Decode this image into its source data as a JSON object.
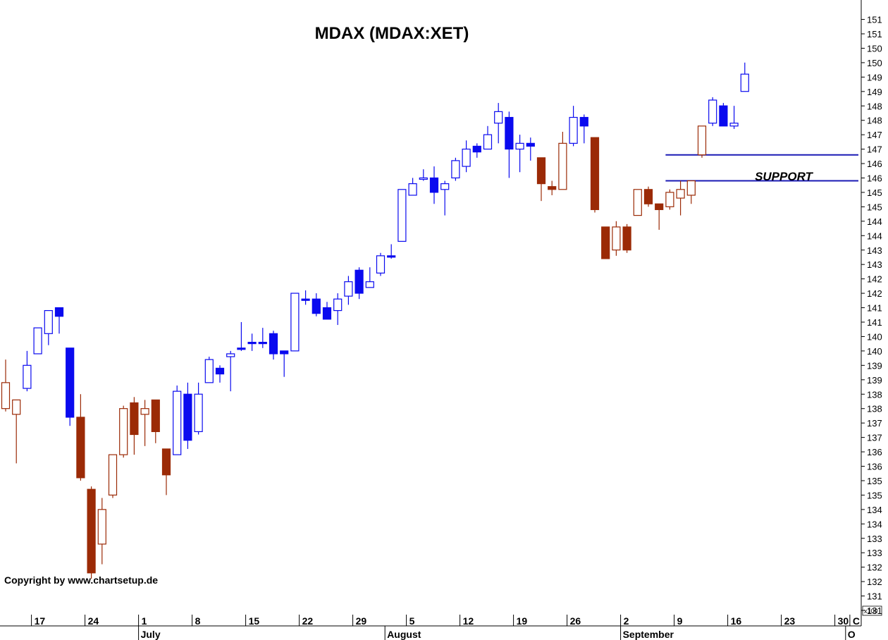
{
  "title": "MDAX  (MDAX:XET)",
  "copyright": "Copyright by www.chartsetup.de",
  "multiplier_label": "x100",
  "colors": {
    "blue": "#0a0aef",
    "brown": "#9b2a06",
    "axis": "#000000",
    "support": "#1a1ab5"
  },
  "chart_data": {
    "type": "candlestick",
    "title": "MDAX  (MDAX:XET)",
    "ylim": [
      13100,
      15200
    ],
    "y_tick_labels": [
      "131",
      "131",
      "132",
      "132",
      "133",
      "133",
      "134",
      "134",
      "135",
      "135",
      "136",
      "136",
      "137",
      "137",
      "138",
      "138",
      "139",
      "139",
      "140",
      "140",
      "141",
      "141",
      "142",
      "142",
      "143",
      "143",
      "144",
      "144",
      "145",
      "145",
      "146",
      "146",
      "147",
      "147",
      "148",
      "148",
      "149",
      "149",
      "150",
      "150",
      "151",
      "151"
    ],
    "y_multiplier": "x100",
    "x_tick_labels": [
      {
        "label": "17",
        "index": 3
      },
      {
        "label": "24",
        "index": 8
      },
      {
        "label": "1",
        "index": 13
      },
      {
        "label": "8",
        "index": 18
      },
      {
        "label": "15",
        "index": 23
      },
      {
        "label": "22",
        "index": 28
      },
      {
        "label": "29",
        "index": 33
      },
      {
        "label": "5",
        "index": 38
      },
      {
        "label": "12",
        "index": 43
      },
      {
        "label": "19",
        "index": 48
      },
      {
        "label": "26",
        "index": 53
      },
      {
        "label": "2",
        "index": 58
      },
      {
        "label": "9",
        "index": 63
      },
      {
        "label": "16",
        "index": 68
      },
      {
        "label": "23",
        "index": 73
      },
      {
        "label": "30",
        "index": 78
      },
      {
        "label": "C",
        "index": 79.4
      }
    ],
    "month_labels": [
      {
        "label": "July",
        "index": 13
      },
      {
        "label": "August",
        "index": 36
      },
      {
        "label": "September",
        "index": 58
      },
      {
        "label": "O",
        "index": 79
      }
    ],
    "support_levels": [
      {
        "value": 14680,
        "from_index": 62,
        "to_index": 79
      },
      {
        "value": 14590,
        "from_index": 62,
        "to_index": 79
      }
    ],
    "annotations": [
      {
        "text": "SUPPORT",
        "index": 71.5,
        "value": 14490
      }
    ],
    "candles": [
      {
        "o": 13800,
        "h": 13970,
        "l": 13790,
        "c": 13890,
        "color": "brown"
      },
      {
        "o": 13780,
        "h": 13820,
        "l": 13610,
        "c": 13830,
        "color": "brown"
      },
      {
        "o": 13870,
        "h": 14000,
        "l": 13860,
        "c": 13950,
        "color": "blue"
      },
      {
        "o": 13990,
        "h": 14080,
        "l": 13990,
        "c": 14080,
        "color": "blue"
      },
      {
        "o": 14060,
        "h": 14140,
        "l": 14020,
        "c": 14140,
        "color": "blue"
      },
      {
        "o": 14120,
        "h": 14150,
        "l": 14060,
        "c": 14150,
        "color": "blue",
        "filled": true
      },
      {
        "o": 14010,
        "h": 14010,
        "l": 13740,
        "c": 13770,
        "color": "blue",
        "filled": true
      },
      {
        "o": 13770,
        "h": 13850,
        "l": 13550,
        "c": 13560,
        "color": "brown",
        "filled": true
      },
      {
        "o": 13520,
        "h": 13530,
        "l": 13210,
        "c": 13230,
        "color": "brown",
        "filled": true
      },
      {
        "o": 13330,
        "h": 13490,
        "l": 13260,
        "c": 13450,
        "color": "brown"
      },
      {
        "o": 13500,
        "h": 13640,
        "l": 13490,
        "c": 13640,
        "color": "brown"
      },
      {
        "o": 13640,
        "h": 13810,
        "l": 13630,
        "c": 13800,
        "color": "brown"
      },
      {
        "o": 13820,
        "h": 13840,
        "l": 13640,
        "c": 13710,
        "color": "brown",
        "filled": true
      },
      {
        "o": 13780,
        "h": 13830,
        "l": 13670,
        "c": 13800,
        "color": "brown"
      },
      {
        "o": 13830,
        "h": 13830,
        "l": 13680,
        "c": 13720,
        "color": "brown",
        "filled": true
      },
      {
        "o": 13660,
        "h": 13660,
        "l": 13500,
        "c": 13570,
        "color": "brown",
        "filled": true
      },
      {
        "o": 13640,
        "h": 13880,
        "l": 13640,
        "c": 13860,
        "color": "blue"
      },
      {
        "o": 13850,
        "h": 13890,
        "l": 13660,
        "c": 13690,
        "color": "blue",
        "filled": true
      },
      {
        "o": 13720,
        "h": 13890,
        "l": 13710,
        "c": 13850,
        "color": "blue"
      },
      {
        "o": 13890,
        "h": 13980,
        "l": 13890,
        "c": 13970,
        "color": "blue"
      },
      {
        "o": 13940,
        "h": 13950,
        "l": 13890,
        "c": 13920,
        "color": "blue",
        "filled": true
      },
      {
        "o": 13980,
        "h": 14000,
        "l": 13860,
        "c": 13990,
        "color": "blue"
      },
      {
        "o": 14010,
        "h": 14100,
        "l": 14000,
        "c": 14010,
        "color": "blue",
        "filled": true
      },
      {
        "o": 14030,
        "h": 14060,
        "l": 14000,
        "c": 14030,
        "color": "blue",
        "filled": true
      },
      {
        "o": 14030,
        "h": 14080,
        "l": 14010,
        "c": 14030,
        "color": "blue",
        "filled": true
      },
      {
        "o": 14060,
        "h": 14070,
        "l": 13970,
        "c": 13990,
        "color": "blue",
        "filled": true
      },
      {
        "o": 14000,
        "h": 14000,
        "l": 13910,
        "c": 13990,
        "color": "blue",
        "filled": true
      },
      {
        "o": 14000,
        "h": 14200,
        "l": 14000,
        "c": 14200,
        "color": "blue"
      },
      {
        "o": 14180,
        "h": 14210,
        "l": 14160,
        "c": 14180,
        "color": "blue",
        "filled": true
      },
      {
        "o": 14180,
        "h": 14200,
        "l": 14120,
        "c": 14130,
        "color": "blue",
        "filled": true
      },
      {
        "o": 14150,
        "h": 14170,
        "l": 14110,
        "c": 14110,
        "color": "blue",
        "filled": true
      },
      {
        "o": 14140,
        "h": 14200,
        "l": 14090,
        "c": 14180,
        "color": "blue"
      },
      {
        "o": 14190,
        "h": 14260,
        "l": 14160,
        "c": 14240,
        "color": "blue"
      },
      {
        "o": 14200,
        "h": 14290,
        "l": 14180,
        "c": 14280,
        "color": "blue",
        "filled": true
      },
      {
        "o": 14220,
        "h": 14290,
        "l": 14230,
        "c": 14240,
        "color": "blue"
      },
      {
        "o": 14270,
        "h": 14340,
        "l": 14260,
        "c": 14330,
        "color": "blue"
      },
      {
        "o": 14330,
        "h": 14370,
        "l": 14320,
        "c": 14330,
        "color": "blue",
        "filled": true
      },
      {
        "o": 14380,
        "h": 14560,
        "l": 14380,
        "c": 14560,
        "color": "blue"
      },
      {
        "o": 14540,
        "h": 14600,
        "l": 14540,
        "c": 14580,
        "color": "blue"
      },
      {
        "o": 14600,
        "h": 14630,
        "l": 14590,
        "c": 14600,
        "color": "blue"
      },
      {
        "o": 14600,
        "h": 14640,
        "l": 14510,
        "c": 14550,
        "color": "blue",
        "filled": true
      },
      {
        "o": 14560,
        "h": 14590,
        "l": 14470,
        "c": 14580,
        "color": "blue"
      },
      {
        "o": 14600,
        "h": 14670,
        "l": 14590,
        "c": 14660,
        "color": "blue"
      },
      {
        "o": 14640,
        "h": 14730,
        "l": 14620,
        "c": 14700,
        "color": "blue"
      },
      {
        "o": 14690,
        "h": 14720,
        "l": 14670,
        "c": 14710,
        "color": "blue",
        "filled": true
      },
      {
        "o": 14700,
        "h": 14780,
        "l": 14700,
        "c": 14750,
        "color": "blue"
      },
      {
        "o": 14790,
        "h": 14860,
        "l": 14720,
        "c": 14830,
        "color": "blue"
      },
      {
        "o": 14810,
        "h": 14830,
        "l": 14600,
        "c": 14700,
        "color": "blue",
        "filled": true
      },
      {
        "o": 14700,
        "h": 14750,
        "l": 14620,
        "c": 14720,
        "color": "blue"
      },
      {
        "o": 14710,
        "h": 14740,
        "l": 14660,
        "c": 14720,
        "color": "blue",
        "filled": true
      },
      {
        "o": 14670,
        "h": 14670,
        "l": 14520,
        "c": 14580,
        "color": "brown",
        "filled": true
      },
      {
        "o": 14570,
        "h": 14590,
        "l": 14540,
        "c": 14560,
        "color": "brown",
        "filled": true
      },
      {
        "o": 14560,
        "h": 14760,
        "l": 14560,
        "c": 14720,
        "color": "brown"
      },
      {
        "o": 14720,
        "h": 14850,
        "l": 14710,
        "c": 14810,
        "color": "blue"
      },
      {
        "o": 14810,
        "h": 14820,
        "l": 14720,
        "c": 14780,
        "color": "blue",
        "filled": true
      },
      {
        "o": 14740,
        "h": 14740,
        "l": 14480,
        "c": 14490,
        "color": "brown",
        "filled": true
      },
      {
        "o": 14430,
        "h": 14430,
        "l": 14320,
        "c": 14320,
        "color": "brown",
        "filled": true
      },
      {
        "o": 14350,
        "h": 14450,
        "l": 14330,
        "c": 14430,
        "color": "brown"
      },
      {
        "o": 14430,
        "h": 14440,
        "l": 14340,
        "c": 14350,
        "color": "brown",
        "filled": true
      },
      {
        "o": 14470,
        "h": 14560,
        "l": 14470,
        "c": 14560,
        "color": "brown"
      },
      {
        "o": 14560,
        "h": 14570,
        "l": 14500,
        "c": 14510,
        "color": "brown",
        "filled": true
      },
      {
        "o": 14510,
        "h": 14510,
        "l": 14420,
        "c": 14490,
        "color": "brown",
        "filled": true
      },
      {
        "o": 14500,
        "h": 14560,
        "l": 14490,
        "c": 14550,
        "color": "brown"
      },
      {
        "o": 14560,
        "h": 14590,
        "l": 14470,
        "c": 14530,
        "color": "brown"
      },
      {
        "o": 14540,
        "h": 14590,
        "l": 14510,
        "c": 14590,
        "color": "brown"
      },
      {
        "o": 14680,
        "h": 14770,
        "l": 14670,
        "c": 14780,
        "color": "brown"
      },
      {
        "o": 14790,
        "h": 14880,
        "l": 14780,
        "c": 14870,
        "color": "blue"
      },
      {
        "o": 14850,
        "h": 14860,
        "l": 14780,
        "c": 14780,
        "color": "blue",
        "filled": true
      },
      {
        "o": 14780,
        "h": 14850,
        "l": 14770,
        "c": 14790,
        "color": "blue"
      },
      {
        "o": 14900,
        "h": 15000,
        "l": 14900,
        "c": 14960,
        "color": "blue"
      }
    ]
  }
}
